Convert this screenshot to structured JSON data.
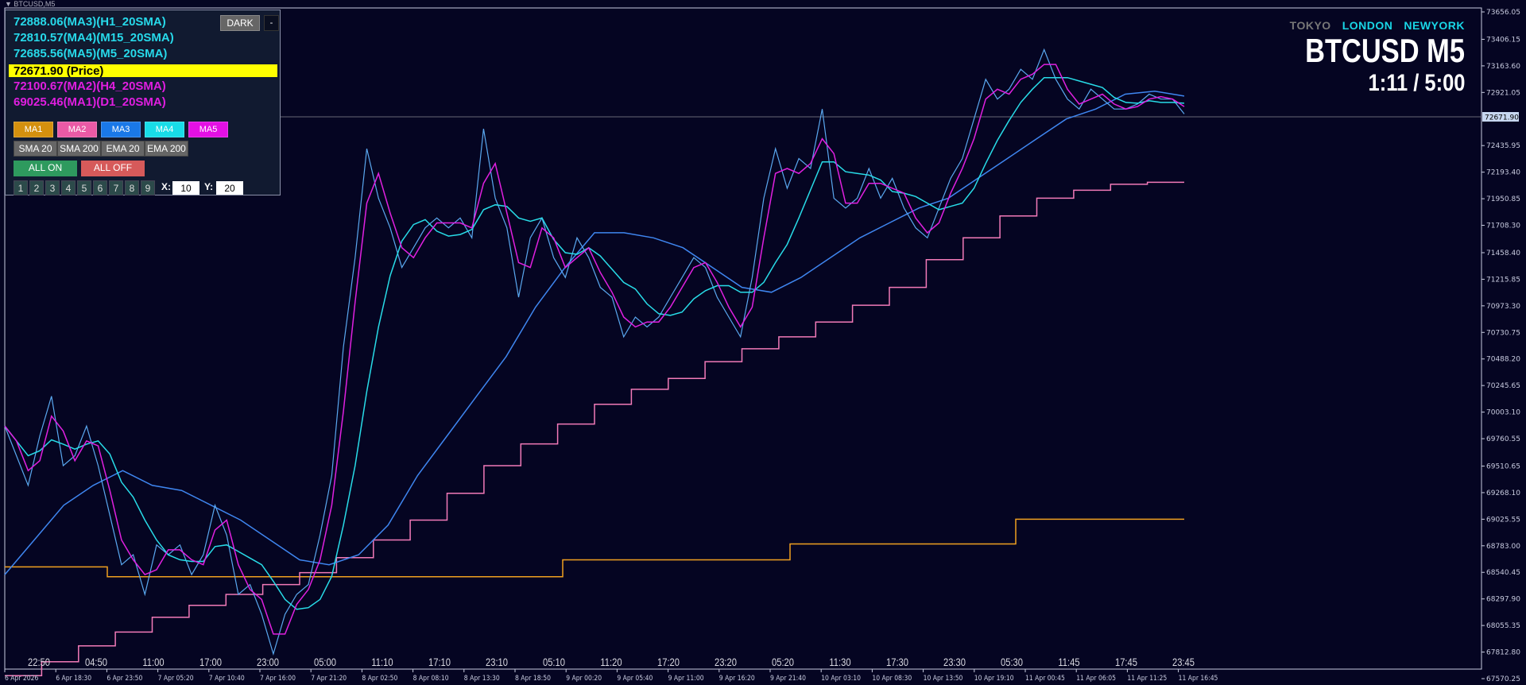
{
  "window": {
    "title": "BTCUSD,M5"
  },
  "panel": {
    "readouts": [
      {
        "text": "72888.06(MA3)(H1_20SMA)",
        "color": "#27d9ea"
      },
      {
        "text": "72810.57(MA4)(M15_20SMA)",
        "color": "#27d9ea"
      },
      {
        "text": "72685.56(MA5)(M5_20SMA)",
        "color": "#27d9ea"
      },
      {
        "text": "72671.90 (Price)",
        "color": "#000000"
      },
      {
        "text": "72100.67(MA2)(H4_20SMA)",
        "color": "#e01ee0"
      },
      {
        "text": "69025.46(MA1)(D1_20SMA)",
        "color": "#e01ee0"
      }
    ],
    "dark_label": "DARK",
    "minimize_label": "-",
    "ma_buttons": [
      {
        "label": "MA1",
        "color": "#d4900e"
      },
      {
        "label": "MA2",
        "color": "#ea5aa6"
      },
      {
        "label": "MA3",
        "color": "#1a78e8"
      },
      {
        "label": "MA4",
        "color": "#18dce8"
      },
      {
        "label": "MA5",
        "color": "#e410e4"
      }
    ],
    "type_buttons": [
      "SMA 20",
      "SMA 200",
      "EMA 20",
      "EMA 200"
    ],
    "all_on": "ALL ON",
    "all_off": "ALL OFF",
    "number_buttons": [
      "1",
      "2",
      "3",
      "4",
      "5",
      "6",
      "7",
      "8",
      "9"
    ],
    "x_label": "X:",
    "x_value": "10",
    "y_label": "Y:",
    "y_value": "20"
  },
  "sessions": [
    {
      "name": "TOKYO",
      "color": "#777777"
    },
    {
      "name": "LONDON",
      "color": "#19d6e6"
    },
    {
      "name": "NEWYORK",
      "color": "#19d6e6"
    }
  ],
  "symbol_label": "BTCUSD M5",
  "timer": "1:11 / 5:00",
  "chart_data": {
    "type": "line",
    "background": "#050522",
    "current_price": "72671.90",
    "ylim": [
      67570.25,
      73656.05
    ],
    "price_ticks": [
      "73656.05",
      "73406.15",
      "73163.60",
      "72921.05",
      "72435.95",
      "72193.40",
      "71950.85",
      "71708.30",
      "71458.40",
      "71215.85",
      "70973.30",
      "70730.75",
      "70488.20",
      "70245.65",
      "70003.10",
      "69760.55",
      "69510.65",
      "69268.10",
      "69025.55",
      "68783.00",
      "68540.45",
      "68297.90",
      "68055.35",
      "67812.80",
      "67570.25"
    ],
    "time_labels": [
      "22:50",
      "04:50",
      "11:00",
      "17:00",
      "23:00",
      "05:00",
      "11:10",
      "17:10",
      "23:10",
      "05:10",
      "11:20",
      "17:20",
      "23:20",
      "05:20",
      "11:30",
      "17:30",
      "23:30",
      "05:30",
      "11:45",
      "17:45",
      "23:45"
    ],
    "date_labels": [
      "6 Apr 2026",
      "6 Apr 18:30",
      "6 Apr 23:50",
      "7 Apr 05:20",
      "7 Apr 10:40",
      "7 Apr 16:00",
      "7 Apr 21:20",
      "8 Apr 02:50",
      "8 Apr 08:10",
      "8 Apr 13:30",
      "8 Apr 18:50",
      "9 Apr 00:20",
      "9 Apr 05:40",
      "9 Apr 11:00",
      "9 Apr 16:20",
      "9 Apr 21:40",
      "10 Apr 03:10",
      "10 Apr 08:30",
      "10 Apr 13:50",
      "10 Apr 19:10",
      "11 Apr 00:45",
      "11 Apr 06:05",
      "11 Apr 11:25",
      "11 Apr 16:45"
    ],
    "series": [
      {
        "key": "price",
        "color": "#5aa8f0",
        "values": [
          69876,
          69605,
          69334,
          69786,
          70148,
          69514,
          69605,
          69876,
          69514,
          69062,
          68610,
          68701,
          68339,
          68791,
          68701,
          68791,
          68520,
          68701,
          69153,
          68881,
          68339,
          68429,
          68158,
          67796,
          68158,
          68339,
          68429,
          68881,
          69424,
          70599,
          71413,
          72408,
          71956,
          71685,
          71323,
          71504,
          71685,
          71775,
          71685,
          71775,
          71594,
          72589,
          71956,
          71685,
          71052,
          71594,
          71775,
          71413,
          71232,
          71594,
          71413,
          71142,
          71052,
          70690,
          70871,
          70780,
          70871,
          71052,
          71232,
          71413,
          71323,
          71052,
          70871,
          70690,
          71232,
          71956,
          72408,
          72046,
          72318,
          72227,
          72770,
          71956,
          71866,
          71956,
          72227,
          71956,
          72137,
          71866,
          71685,
          71594,
          71866,
          72137,
          72318,
          72679,
          73041,
          72860,
          72951,
          73132,
          73041,
          73312,
          73041,
          72860,
          72770,
          72951,
          72860,
          72770,
          72770,
          72815,
          72905,
          72860,
          72860,
          72725
        ]
      },
      {
        "key": "MA3",
        "color": "#3f86f0",
        "values": [
          68520,
          68836,
          69153,
          69334,
          69469,
          69334,
          69288,
          69153,
          69017,
          68836,
          68655,
          68610,
          68701,
          68972,
          69424,
          69786,
          70148,
          70509,
          70961,
          71323,
          71640,
          71640,
          71594,
          71504,
          71323,
          71142,
          71097,
          71232,
          71413,
          71594,
          71730,
          71866,
          71956,
          72137,
          72318,
          72499,
          72679,
          72770,
          72905,
          72933,
          72888
        ]
      },
      {
        "key": "MA2",
        "color": "#f27ab8",
        "step": true,
        "values": [
          67597,
          67724,
          67869,
          67995,
          68131,
          68240,
          68339,
          68429,
          68538,
          68674,
          68836,
          69017,
          69262,
          69514,
          69713,
          69894,
          70075,
          70211,
          70310,
          70464,
          70581,
          70690,
          70826,
          70979,
          71142,
          71395,
          71594,
          71793,
          71956,
          72028,
          72083,
          72100.67
        ]
      },
      {
        "key": "MA1",
        "color": "#f0a020",
        "step": true,
        "values": [
          68590,
          68500,
          68655,
          68800,
          69025.46
        ]
      }
    ]
  }
}
